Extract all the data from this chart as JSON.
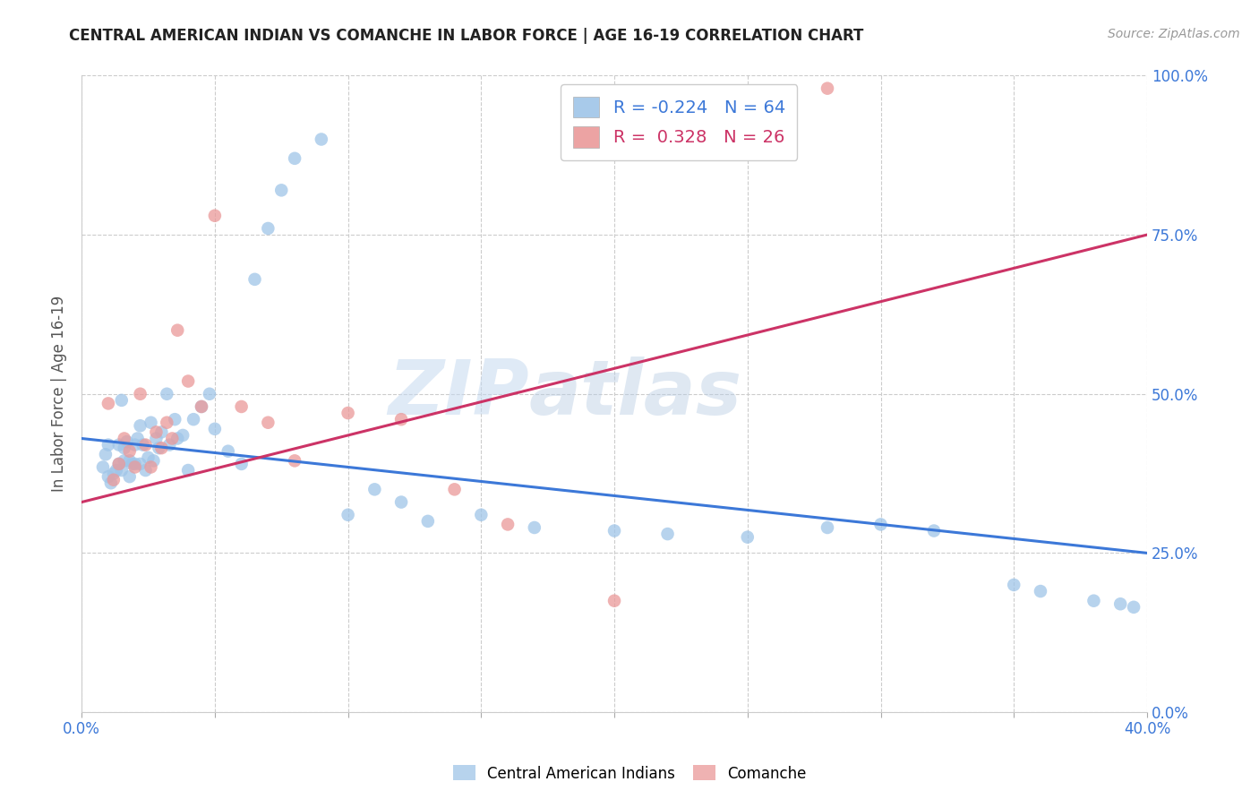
{
  "title": "CENTRAL AMERICAN INDIAN VS COMANCHE IN LABOR FORCE | AGE 16-19 CORRELATION CHART",
  "source": "Source: ZipAtlas.com",
  "ylabel": "In Labor Force | Age 16-19",
  "xlim": [
    0.0,
    0.4
  ],
  "ylim": [
    0.0,
    1.0
  ],
  "xticks": [
    0.0,
    0.05,
    0.1,
    0.15,
    0.2,
    0.25,
    0.3,
    0.35,
    0.4
  ],
  "xtick_labels": [
    "0.0%",
    "",
    "",
    "",
    "",
    "",
    "",
    "",
    "40.0%"
  ],
  "ytick_labels_right": [
    "0.0%",
    "25.0%",
    "50.0%",
    "75.0%",
    "100.0%"
  ],
  "yticks_right": [
    0.0,
    0.25,
    0.5,
    0.75,
    1.0
  ],
  "blue_color": "#9fc5e8",
  "pink_color": "#ea9999",
  "blue_line_color": "#3c78d8",
  "pink_line_color": "#cc3366",
  "legend_r_blue": "-0.224",
  "legend_n_blue": "64",
  "legend_r_pink": "0.328",
  "legend_n_pink": "26",
  "watermark_zip": "ZIP",
  "watermark_atlas": "atlas",
  "blue_scatter_x": [
    0.008,
    0.009,
    0.01,
    0.011,
    0.012,
    0.013,
    0.014,
    0.014,
    0.015,
    0.016,
    0.016,
    0.017,
    0.018,
    0.018,
    0.019,
    0.02,
    0.02,
    0.021,
    0.022,
    0.022,
    0.023,
    0.024,
    0.025,
    0.026,
    0.027,
    0.028,
    0.029,
    0.03,
    0.032,
    0.033,
    0.035,
    0.036,
    0.038,
    0.04,
    0.042,
    0.045,
    0.048,
    0.05,
    0.055,
    0.06,
    0.065,
    0.07,
    0.075,
    0.08,
    0.09,
    0.1,
    0.11,
    0.12,
    0.13,
    0.15,
    0.17,
    0.2,
    0.22,
    0.25,
    0.28,
    0.3,
    0.32,
    0.35,
    0.36,
    0.38,
    0.39,
    0.395,
    0.01,
    0.015
  ],
  "blue_scatter_y": [
    0.385,
    0.405,
    0.42,
    0.36,
    0.375,
    0.38,
    0.39,
    0.42,
    0.38,
    0.395,
    0.415,
    0.425,
    0.395,
    0.37,
    0.39,
    0.39,
    0.42,
    0.43,
    0.45,
    0.39,
    0.42,
    0.38,
    0.4,
    0.455,
    0.395,
    0.43,
    0.415,
    0.44,
    0.5,
    0.42,
    0.46,
    0.43,
    0.435,
    0.38,
    0.46,
    0.48,
    0.5,
    0.445,
    0.41,
    0.39,
    0.68,
    0.76,
    0.82,
    0.87,
    0.9,
    0.31,
    0.35,
    0.33,
    0.3,
    0.31,
    0.29,
    0.285,
    0.28,
    0.275,
    0.29,
    0.295,
    0.285,
    0.2,
    0.19,
    0.175,
    0.17,
    0.165,
    0.37,
    0.49
  ],
  "pink_scatter_x": [
    0.01,
    0.012,
    0.014,
    0.016,
    0.018,
    0.02,
    0.022,
    0.024,
    0.026,
    0.028,
    0.03,
    0.032,
    0.034,
    0.036,
    0.04,
    0.045,
    0.05,
    0.06,
    0.07,
    0.08,
    0.1,
    0.12,
    0.14,
    0.16,
    0.2,
    0.28
  ],
  "pink_scatter_y": [
    0.485,
    0.365,
    0.39,
    0.43,
    0.41,
    0.385,
    0.5,
    0.42,
    0.385,
    0.44,
    0.415,
    0.455,
    0.43,
    0.6,
    0.52,
    0.48,
    0.78,
    0.48,
    0.455,
    0.395,
    0.47,
    0.46,
    0.35,
    0.295,
    0.175,
    0.98
  ],
  "blue_line_x0": 0.0,
  "blue_line_y0": 0.43,
  "blue_line_x1": 0.4,
  "blue_line_y1": 0.25,
  "pink_line_x0": 0.0,
  "pink_line_y0": 0.33,
  "pink_line_x1": 0.4,
  "pink_line_y1": 0.75
}
